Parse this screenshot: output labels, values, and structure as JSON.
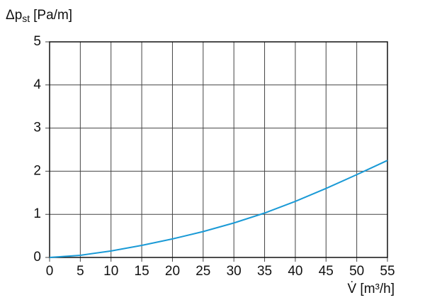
{
  "chart_data": {
    "type": "line",
    "ylabel": "Δp",
    "ylabel_sub": "st",
    "ylabel_unit": "[Pa/m]",
    "xlabel": "V̇ [m³/h]",
    "x": [
      0,
      5,
      10,
      15,
      20,
      25,
      30,
      35,
      40,
      45,
      50,
      55
    ],
    "series": [
      {
        "color": "#1a9ad6",
        "values": [
          0,
          0.05,
          0.15,
          0.28,
          0.43,
          0.6,
          0.8,
          1.03,
          1.3,
          1.6,
          1.92,
          2.25
        ]
      }
    ],
    "xlim": [
      0,
      55
    ],
    "xticks": [
      0,
      5,
      10,
      15,
      20,
      25,
      30,
      35,
      40,
      45,
      50,
      55
    ],
    "ylim": [
      0,
      5
    ],
    "yticks": [
      0,
      1,
      2,
      3,
      4,
      5
    ],
    "grid": true
  }
}
